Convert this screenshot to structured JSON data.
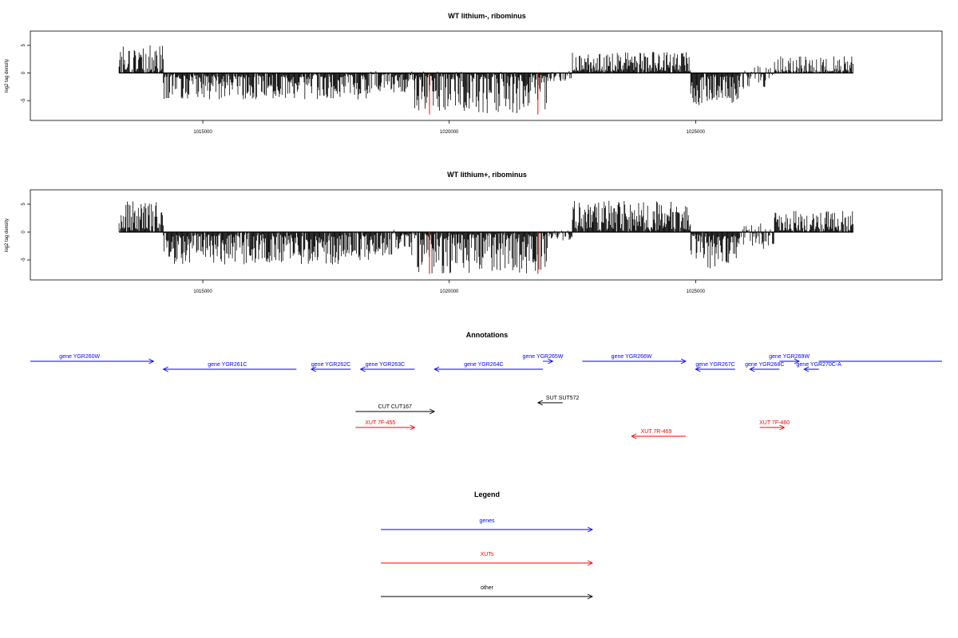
{
  "chart_data": [
    {
      "type": "bar",
      "title": "WT lithium-, ribominus",
      "ylabel": "log2 tag density",
      "xlim": [
        1011500,
        1030000
      ],
      "ylim": [
        -8,
        7
      ],
      "x_ticks": [
        "1015000",
        "1020000",
        "1025000"
      ],
      "y_ticks": [
        "5",
        "0",
        "-5"
      ],
      "x_range": [
        1013300,
        1028200
      ],
      "highlight_x": [
        1019600,
        1021800
      ],
      "highlight_y": -7.5,
      "segments": [
        {
          "start": 1013300,
          "end": 1014200,
          "mean": 2.6,
          "var": 2.8
        },
        {
          "start": 1014200,
          "end": 1018400,
          "mean": -2.6,
          "var": 2.2
        },
        {
          "start": 1018400,
          "end": 1019300,
          "mean": -1.5,
          "var": 2.0
        },
        {
          "start": 1019300,
          "end": 1022000,
          "mean": -3.5,
          "var": 3.8
        },
        {
          "start": 1022000,
          "end": 1022500,
          "mean": -0.5,
          "var": 1.0
        },
        {
          "start": 1022500,
          "end": 1024900,
          "mean": 2.0,
          "var": 1.8
        },
        {
          "start": 1024900,
          "end": 1025900,
          "mean": -3.2,
          "var": 2.6
        },
        {
          "start": 1025900,
          "end": 1026600,
          "mean": -0.8,
          "var": 2.2
        },
        {
          "start": 1026600,
          "end": 1028200,
          "mean": 1.5,
          "var": 1.6
        }
      ]
    },
    {
      "type": "bar",
      "title": "WT lithium+, ribominus",
      "ylabel": "log2 tag density",
      "xlim": [
        1011500,
        1030000
      ],
      "ylim": [
        -8,
        7
      ],
      "x_ticks": [
        "1015000",
        "1020000",
        "1025000"
      ],
      "y_ticks": [
        "5",
        "0",
        "-5"
      ],
      "x_range": [
        1013300,
        1028200
      ],
      "highlight_x": [
        1019600,
        1021800
      ],
      "highlight_y": -7.5,
      "segments": [
        {
          "start": 1013300,
          "end": 1014200,
          "mean": 2.8,
          "var": 2.8
        },
        {
          "start": 1014200,
          "end": 1018400,
          "mean": -3.2,
          "var": 2.6
        },
        {
          "start": 1018400,
          "end": 1019300,
          "mean": -1.8,
          "var": 2.4
        },
        {
          "start": 1019300,
          "end": 1022000,
          "mean": -3.8,
          "var": 3.8
        },
        {
          "start": 1022000,
          "end": 1022500,
          "mean": -0.6,
          "var": 1.0
        },
        {
          "start": 1022500,
          "end": 1024900,
          "mean": 3.0,
          "var": 2.6
        },
        {
          "start": 1024900,
          "end": 1025900,
          "mean": -3.5,
          "var": 3.0
        },
        {
          "start": 1025900,
          "end": 1026600,
          "mean": -0.8,
          "var": 2.4
        },
        {
          "start": 1026600,
          "end": 1028200,
          "mean": 2.0,
          "var": 1.8
        }
      ]
    }
  ],
  "annotations": {
    "title": "Annotations",
    "genes": [
      {
        "label": "gene YGR260W",
        "start": 1011500,
        "end": 1014000,
        "dir": "right",
        "track": 0,
        "label_x": 1012500
      },
      {
        "label": "gene YGR261C",
        "start": 1014200,
        "end": 1016900,
        "dir": "left",
        "track": 1,
        "label_x": 1015500
      },
      {
        "label": "gene YGR262C",
        "start": 1017200,
        "end": 1018000,
        "dir": "left",
        "track": 1,
        "label_x": 1017600
      },
      {
        "label": "gene YGR263C",
        "start": 1018200,
        "end": 1019300,
        "dir": "left",
        "track": 1,
        "label_x": 1018700
      },
      {
        "label": "gene YGR264C",
        "start": 1019700,
        "end": 1021900,
        "dir": "left",
        "track": 1,
        "label_x": 1020700
      },
      {
        "label": "gene YGR265W",
        "start": 1021900,
        "end": 1022100,
        "dir": "right",
        "track": 0,
        "label_x": 1021900
      },
      {
        "label": "gene YGR266W",
        "start": 1022700,
        "end": 1024800,
        "dir": "right",
        "track": 0,
        "label_x": 1023700
      },
      {
        "label": "gene YGR267C",
        "start": 1025000,
        "end": 1025800,
        "dir": "left",
        "track": 1,
        "label_x": 1025400
      },
      {
        "label": "gene YGR268C",
        "start": 1026100,
        "end": 1026700,
        "dir": "left",
        "track": 1,
        "label_x": 1026400
      },
      {
        "label": "gene YGR269W",
        "start": 1026700,
        "end": 1027100,
        "dir": "right",
        "track": 0,
        "label_x": 1026900
      },
      {
        "label": "gene YGR270C-A",
        "start": 1027200,
        "end": 1027500,
        "dir": "left",
        "track": 1,
        "label_x": 1027500
      },
      {
        "label": "",
        "start": 1027500,
        "end": 1030000,
        "dir": "none",
        "track": 0,
        "label_x": 1028700
      }
    ],
    "others": [
      {
        "label": "SUT SUT572",
        "start": 1021800,
        "end": 1022300,
        "dir": "left",
        "track": 2,
        "label_x": 1022300
      },
      {
        "label": "CUT CUT167",
        "start": 1018100,
        "end": 1019700,
        "dir": "right",
        "track": 3,
        "label_x": 1018900
      }
    ],
    "xuts": [
      {
        "label": "XUT 7F-455",
        "start": 1018100,
        "end": 1019300,
        "dir": "right",
        "track": 4,
        "label_x": 1018600
      },
      {
        "label": "XUT 7R-469",
        "start": 1023700,
        "end": 1024800,
        "dir": "left",
        "track": 5,
        "label_x": 1024200
      },
      {
        "label": "XUT 7F-460",
        "start": 1026300,
        "end": 1026800,
        "dir": "right",
        "track": 4,
        "label_x": 1026600
      }
    ]
  },
  "legend": {
    "title": "Legend",
    "items": [
      {
        "label": "genes",
        "color": "#0000ff"
      },
      {
        "label": "XUTs",
        "color": "#ff0000"
      },
      {
        "label": "other",
        "color": "#000000"
      }
    ]
  },
  "colors": {
    "gene": "#0000ff",
    "xut": "#ff0000",
    "other": "#000000",
    "highlight": "#ff0000",
    "bars": "#000000"
  }
}
